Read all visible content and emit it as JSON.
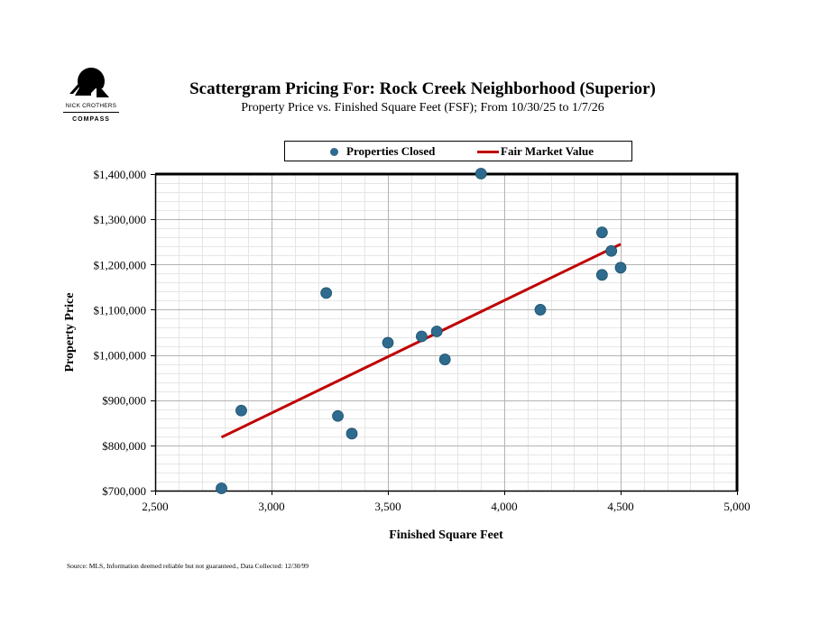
{
  "logo": {
    "name": "NICK CROTHERS",
    "brand": "COMPASS"
  },
  "header": {
    "title": "Scattergram Pricing For: Rock Creek Neighborhood (Superior)",
    "subtitle": "Property Price vs. Finished Square Feet (FSF); From 10/30/25 to 1/7/26"
  },
  "legend": {
    "points_label": "Properties Closed",
    "line_label": "Fair Market Value"
  },
  "colors": {
    "points": "#2e6b8e",
    "trend": "#c00000"
  },
  "chart_data": {
    "type": "scatter",
    "title": "Scattergram Pricing For: Rock Creek Neighborhood (Superior)",
    "xlabel": "Finished Square Feet",
    "ylabel": "Property Price",
    "xlim": [
      2500,
      5000
    ],
    "ylim": [
      700000,
      1400000
    ],
    "x_ticks": [
      2500,
      3000,
      3500,
      4000,
      4500,
      5000
    ],
    "x_tick_labels": [
      "2,500",
      "3,000",
      "3,500",
      "4,000",
      "4,500",
      "5,000"
    ],
    "y_ticks": [
      700000,
      800000,
      900000,
      1000000,
      1100000,
      1200000,
      1300000,
      1400000
    ],
    "y_tick_labels": [
      "$700,000",
      "$800,000",
      "$900,000",
      "$1,000,000",
      "$1,100,000",
      "$1,200,000",
      "$1,300,000",
      "$1,400,000"
    ],
    "grid": true,
    "legend_position": "top",
    "series": [
      {
        "name": "Properties Closed",
        "kind": "scatter",
        "points": [
          {
            "x": 2785,
            "y": 705000
          },
          {
            "x": 2870,
            "y": 877000
          },
          {
            "x": 3235,
            "y": 1137000
          },
          {
            "x": 3285,
            "y": 865000
          },
          {
            "x": 3345,
            "y": 826000
          },
          {
            "x": 3500,
            "y": 1027000
          },
          {
            "x": 3645,
            "y": 1041000
          },
          {
            "x": 3710,
            "y": 1052000
          },
          {
            "x": 3745,
            "y": 990000
          },
          {
            "x": 3900,
            "y": 1401000
          },
          {
            "x": 4155,
            "y": 1100000
          },
          {
            "x": 4420,
            "y": 1271000
          },
          {
            "x": 4420,
            "y": 1177000
          },
          {
            "x": 4460,
            "y": 1230000
          },
          {
            "x": 4500,
            "y": 1193000
          }
        ]
      },
      {
        "name": "Fair Market Value",
        "kind": "line",
        "points": [
          {
            "x": 2785,
            "y": 818000
          },
          {
            "x": 4500,
            "y": 1245000
          }
        ]
      }
    ]
  },
  "footer": {
    "source": "Source: MLS, Information deemed reliable but not guaranteed., Data Collected: 12/30/99"
  }
}
